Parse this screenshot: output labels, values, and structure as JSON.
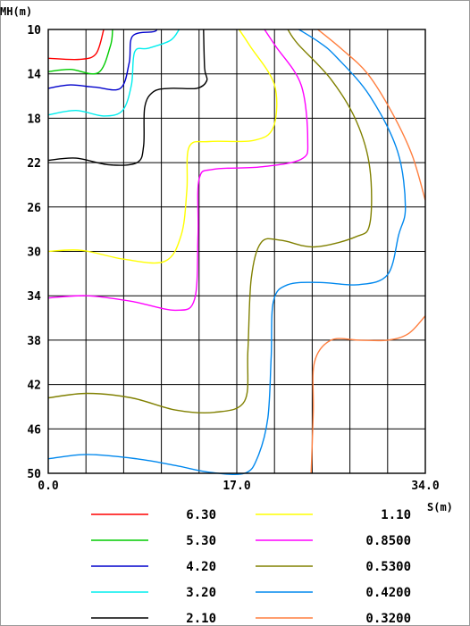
{
  "chart_data": {
    "type": "contour",
    "xlabel": "S(m)",
    "ylabel": "MH(m)",
    "xlim": [
      0,
      34
    ],
    "ylim": [
      50,
      10
    ],
    "x_grid_step": 3.4,
    "y_grid_step": 4,
    "x_tick_labels": [
      "0.0",
      "17.0",
      "34.0"
    ],
    "y_tick_labels": [
      "10",
      "14",
      "18",
      "22",
      "26",
      "30",
      "34",
      "38",
      "42",
      "46",
      "50"
    ],
    "grid": true,
    "legend_position": "bottom",
    "series": [
      {
        "name": "6.30",
        "color": "#ff0000",
        "points": [
          [
            0,
            12.6
          ],
          [
            2.8,
            12.7
          ],
          [
            4.3,
            12.2
          ],
          [
            5.0,
            10
          ]
        ]
      },
      {
        "name": "5.30",
        "color": "#00cc00",
        "points": [
          [
            0,
            13.8
          ],
          [
            2.0,
            13.6
          ],
          [
            4.5,
            13.9
          ],
          [
            5.6,
            11.5
          ],
          [
            5.8,
            10
          ]
        ]
      },
      {
        "name": "4.20",
        "color": "#0000cc",
        "points": [
          [
            0,
            15.3
          ],
          [
            2.0,
            15.0
          ],
          [
            4.2,
            15.2
          ],
          [
            6.5,
            15.3
          ],
          [
            7.3,
            13.0
          ],
          [
            7.6,
            10.6
          ],
          [
            9.5,
            10.2
          ],
          [
            9.8,
            10
          ]
        ]
      },
      {
        "name": "3.20",
        "color": "#00eeee",
        "points": [
          [
            0,
            17.7
          ],
          [
            2.5,
            17.3
          ],
          [
            5.0,
            17.8
          ],
          [
            6.7,
            17.3
          ],
          [
            7.5,
            15.0
          ],
          [
            7.8,
            12.0
          ],
          [
            9.0,
            11.7
          ],
          [
            11.0,
            11.0
          ],
          [
            11.8,
            10
          ]
        ]
      },
      {
        "name": "2.10",
        "color": "#000000",
        "points": [
          [
            0,
            21.8
          ],
          [
            2.5,
            21.6
          ],
          [
            5.5,
            22.2
          ],
          [
            8.0,
            22.0
          ],
          [
            8.6,
            20.5
          ],
          [
            8.7,
            17.0
          ],
          [
            9.5,
            15.6
          ],
          [
            11.0,
            15.3
          ],
          [
            13.4,
            15.3
          ],
          [
            14.3,
            14.6
          ],
          [
            14.1,
            13.5
          ],
          [
            14.0,
            10
          ]
        ]
      },
      {
        "name": "1.10",
        "color": "#ffff00",
        "points": [
          [
            0,
            30.0
          ],
          [
            3.0,
            29.9
          ],
          [
            6.8,
            30.7
          ],
          [
            10.5,
            30.9
          ],
          [
            12.0,
            28.5
          ],
          [
            12.5,
            24.5
          ],
          [
            12.7,
            20.6
          ],
          [
            14.5,
            20.1
          ],
          [
            18.5,
            20.0
          ],
          [
            20.3,
            18.8
          ],
          [
            20.4,
            15.0
          ],
          [
            18.2,
            11.5
          ],
          [
            17.2,
            10
          ]
        ]
      },
      {
        "name": "0.8500",
        "color": "#ff00ff",
        "points": [
          [
            0,
            34.2
          ],
          [
            3.5,
            34.0
          ],
          [
            7.5,
            34.5
          ],
          [
            11.5,
            35.3
          ],
          [
            13.2,
            34.3
          ],
          [
            13.5,
            28.5
          ],
          [
            13.6,
            23.5
          ],
          [
            14.9,
            22.6
          ],
          [
            19.0,
            22.4
          ],
          [
            22.8,
            21.7
          ],
          [
            23.4,
            20.0
          ],
          [
            22.8,
            15.0
          ],
          [
            20.5,
            11.5
          ],
          [
            19.5,
            10
          ]
        ]
      },
      {
        "name": "0.5300",
        "color": "#808000",
        "points": [
          [
            0,
            43.2
          ],
          [
            3.5,
            42.8
          ],
          [
            7.5,
            43.2
          ],
          [
            11.5,
            44.3
          ],
          [
            15.0,
            44.5
          ],
          [
            17.7,
            43.5
          ],
          [
            18.0,
            39.0
          ],
          [
            18.3,
            32.5
          ],
          [
            19.2,
            29.2
          ],
          [
            21.0,
            29.0
          ],
          [
            24.0,
            29.6
          ],
          [
            27.7,
            28.7
          ],
          [
            29.0,
            27.5
          ],
          [
            29.0,
            22.5
          ],
          [
            27.8,
            18.3
          ],
          [
            25.5,
            14.5
          ],
          [
            22.5,
            11.3
          ],
          [
            21.6,
            10
          ]
        ]
      },
      {
        "name": "0.4200",
        "color": "#0088ee",
        "points": [
          [
            0,
            48.7
          ],
          [
            3.5,
            48.3
          ],
          [
            8.0,
            48.7
          ],
          [
            11.5,
            49.3
          ],
          [
            14.5,
            49.9
          ],
          [
            17.7,
            50
          ],
          [
            18.9,
            48.5
          ],
          [
            19.8,
            45.0
          ],
          [
            20.1,
            39.5
          ],
          [
            20.3,
            34.5
          ],
          [
            21.6,
            33.0
          ],
          [
            24.5,
            32.8
          ],
          [
            28.0,
            33.0
          ],
          [
            30.6,
            32.1
          ],
          [
            31.6,
            28.5
          ],
          [
            32.2,
            26.0
          ],
          [
            31.5,
            21.0
          ],
          [
            29.0,
            16.0
          ],
          [
            26.0,
            12.5
          ],
          [
            24.5,
            11.2
          ],
          [
            22.6,
            10
          ]
        ]
      },
      {
        "name": "0.3200",
        "color": "#ff7f3f",
        "points": [
          [
            23.7,
            50
          ],
          [
            23.9,
            44.5
          ],
          [
            24.0,
            40.0
          ],
          [
            25.5,
            38.0
          ],
          [
            28.0,
            38.0
          ],
          [
            30.6,
            38.0
          ],
          [
            32.5,
            37.4
          ],
          [
            34.0,
            35.8
          ]
        ]
      },
      {
        "name": "0.3200",
        "color": "#ff7f3f",
        "points": [
          [
            24.3,
            10
          ],
          [
            26.5,
            11.8
          ],
          [
            28.8,
            14.0
          ],
          [
            31.0,
            17.5
          ],
          [
            32.8,
            21.3
          ],
          [
            34.0,
            25.4
          ]
        ]
      }
    ],
    "legend": [
      {
        "label": "6.30",
        "color": "#ff0000"
      },
      {
        "label": "5.30",
        "color": "#00cc00"
      },
      {
        "label": "4.20",
        "color": "#0000cc"
      },
      {
        "label": "3.20",
        "color": "#00eeee"
      },
      {
        "label": "2.10",
        "color": "#000000"
      },
      {
        "label": "1.10",
        "color": "#ffff00"
      },
      {
        "label": "0.8500",
        "color": "#ff00ff"
      },
      {
        "label": "0.5300",
        "color": "#808000"
      },
      {
        "label": "0.4200",
        "color": "#0088ee"
      },
      {
        "label": "0.3200",
        "color": "#ff7f3f"
      }
    ]
  }
}
